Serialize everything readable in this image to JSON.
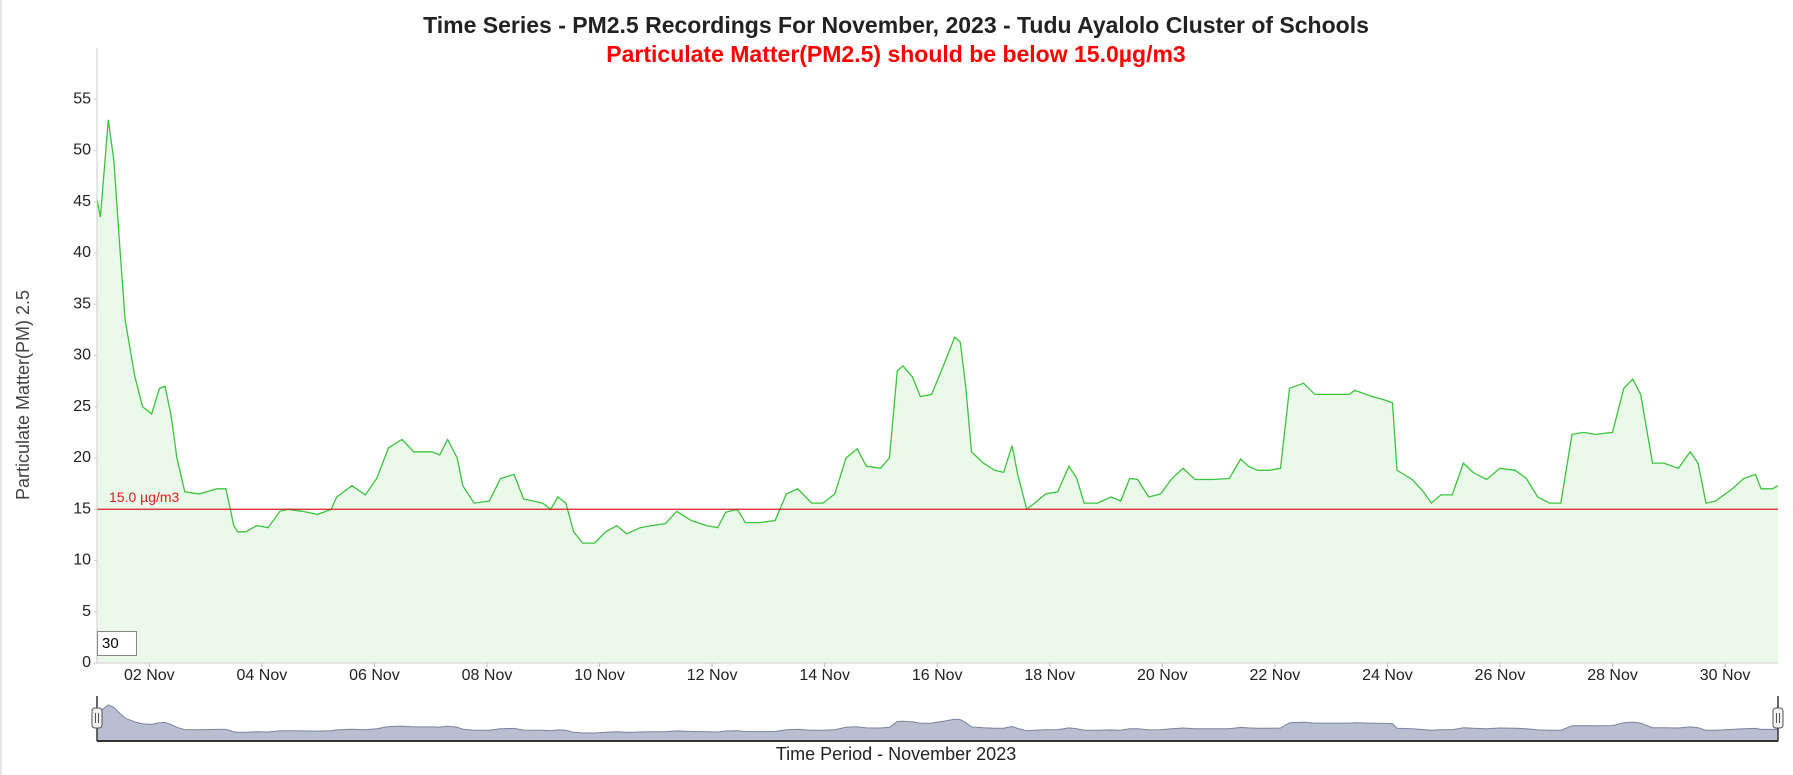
{
  "chart_data": {
    "type": "area",
    "title": "Time Series - PM2.5 Recordings For November, 2023 - Tudu Ayalolo Cluster of Schools",
    "subtitle": "Particulate Matter(PM2.5) should be below 15.0µg/m3",
    "y_label": "Particulate Matter(PM) 2.5",
    "x_label": "Time Period - November 2023",
    "input_value": "30",
    "threshold": 15,
    "threshold_label": "15.0 µg/m3",
    "threshold_color": "#d42020",
    "xlim": [
      1.07,
      30.94
    ],
    "ylim": [
      0,
      60
    ],
    "yticks": [
      0,
      5,
      10,
      15,
      20,
      25,
      30,
      35,
      40,
      45,
      50,
      55
    ],
    "xticks": [
      {
        "value": 2,
        "label": "02 Nov"
      },
      {
        "value": 4,
        "label": "04 Nov"
      },
      {
        "value": 6,
        "label": "06 Nov"
      },
      {
        "value": 8,
        "label": "08 Nov"
      },
      {
        "value": 10,
        "label": "10 Nov"
      },
      {
        "value": 12,
        "label": "12 Nov"
      },
      {
        "value": 14,
        "label": "14 Nov"
      },
      {
        "value": 16,
        "label": "16 Nov"
      },
      {
        "value": 18,
        "label": "18 Nov"
      },
      {
        "value": 20,
        "label": "20 Nov"
      },
      {
        "value": 22,
        "label": "22 Nov"
      },
      {
        "value": 24,
        "label": "24 Nov"
      },
      {
        "value": 26,
        "label": "26 Nov"
      },
      {
        "value": 28,
        "label": "28 Nov"
      },
      {
        "value": 30,
        "label": "30 Nov"
      }
    ],
    "grid": false,
    "series": [
      {
        "color": "#3cc43c",
        "x": [
          1.07,
          1.13,
          1.27,
          1.37,
          1.47,
          1.57,
          1.74,
          1.88,
          2.04,
          2.18,
          2.28,
          2.39,
          2.49,
          2.63,
          2.89,
          3.2,
          3.36,
          3.5,
          3.57,
          3.71,
          3.91,
          4.11,
          4.32,
          4.46,
          4.72,
          4.99,
          5.23,
          5.33,
          5.6,
          5.84,
          6.04,
          6.25,
          6.49,
          6.7,
          7.02,
          7.16,
          7.3,
          7.47,
          7.57,
          7.77,
          8.04,
          8.24,
          8.48,
          8.65,
          8.99,
          9.13,
          9.26,
          9.4,
          9.54,
          9.7,
          9.91,
          10.11,
          10.31,
          10.48,
          10.72,
          10.92,
          11.17,
          11.37,
          11.63,
          11.9,
          12.1,
          12.24,
          12.45,
          12.59,
          12.85,
          13.12,
          13.32,
          13.52,
          13.77,
          13.97,
          14.18,
          14.38,
          14.58,
          14.74,
          14.99,
          15.15,
          15.29,
          15.39,
          15.56,
          15.7,
          15.9,
          16.11,
          16.31,
          16.41,
          16.51,
          16.61,
          16.82,
          17.02,
          17.18,
          17.33,
          17.43,
          17.59,
          17.73,
          17.93,
          18.14,
          18.34,
          18.48,
          18.61,
          18.85,
          19.09,
          19.26,
          19.42,
          19.56,
          19.76,
          19.97,
          20.17,
          20.37,
          20.58,
          20.88,
          21.19,
          21.39,
          21.53,
          21.7,
          21.9,
          22.1,
          22.26,
          22.51,
          22.71,
          23.12,
          23.32,
          23.42,
          23.73,
          23.93,
          24.09,
          24.17,
          24.44,
          24.64,
          24.78,
          24.95,
          25.15,
          25.35,
          25.52,
          25.76,
          26.0,
          26.27,
          26.47,
          26.67,
          26.88,
          27.08,
          27.28,
          27.49,
          27.69,
          28.0,
          28.2,
          28.36,
          28.5,
          28.71,
          28.91,
          29.17,
          29.38,
          29.52,
          29.66,
          29.83,
          30.13,
          30.33,
          30.54,
          30.64,
          30.84,
          30.94
        ],
        "values": [
          45.2,
          43.5,
          53,
          49,
          41,
          33.5,
          28,
          25,
          24.3,
          26.8,
          27,
          24,
          20,
          16.7,
          16.5,
          17,
          17,
          13.4,
          12.8,
          12.8,
          13.4,
          13.2,
          14.8,
          15,
          14.8,
          14.5,
          15,
          16.2,
          17.3,
          16.4,
          18,
          21,
          21.8,
          20.6,
          20.6,
          20.3,
          21.8,
          20,
          17.3,
          15.6,
          15.8,
          18,
          18.4,
          16,
          15.6,
          15,
          16.2,
          15.6,
          12.8,
          11.7,
          11.7,
          12.8,
          13.4,
          12.6,
          13.2,
          13.4,
          13.6,
          14.8,
          13.9,
          13.4,
          13.2,
          14.7,
          15,
          13.7,
          13.7,
          13.9,
          16.5,
          17,
          15.6,
          15.6,
          16.5,
          20,
          20.9,
          19.2,
          19,
          20,
          28.5,
          29,
          27.9,
          26,
          26.2,
          29,
          31.8,
          31.3,
          26.8,
          20.6,
          19.5,
          18.8,
          18.6,
          21.2,
          18.4,
          15,
          15.6,
          16.5,
          16.7,
          19.2,
          18,
          15.6,
          15.6,
          16.2,
          15.8,
          18,
          17.9,
          16.2,
          16.5,
          18,
          19,
          17.9,
          17.9,
          18,
          19.9,
          19.2,
          18.8,
          18.8,
          19,
          26.8,
          27.3,
          26.2,
          26.2,
          26.2,
          26.6,
          26,
          25.7,
          25.4,
          18.8,
          17.9,
          16.7,
          15.6,
          16.4,
          16.4,
          19.5,
          18.6,
          17.9,
          19,
          18.8,
          18,
          16.2,
          15.6,
          15.6,
          22.3,
          22.5,
          22.3,
          22.5,
          26.8,
          27.7,
          26.2,
          19.5,
          19.5,
          19,
          20.6,
          19.5,
          15.6,
          15.8,
          17,
          18,
          18.4,
          17,
          17,
          17.3
        ]
      }
    ]
  }
}
